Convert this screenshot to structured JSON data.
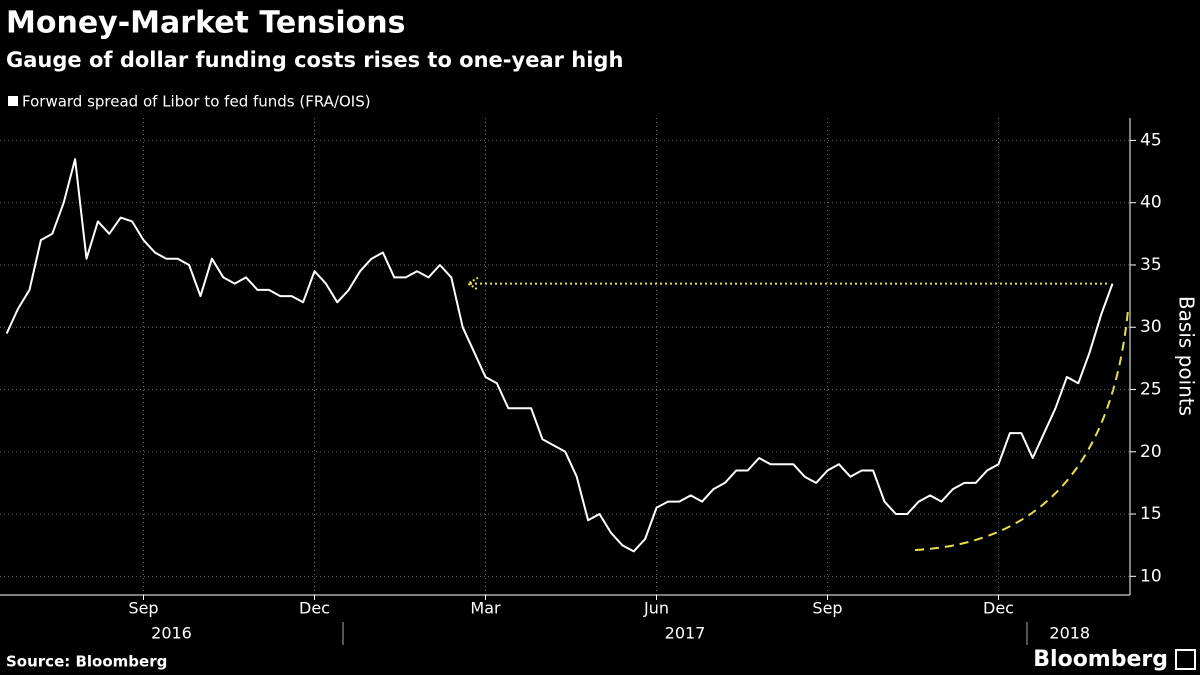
{
  "chart_data": {
    "type": "line",
    "title": "Money-Market Tensions",
    "subtitle": "Gauge of dollar funding costs rises to one-year high",
    "y_label": "Basis points",
    "source": "Source: Bloomberg",
    "brand": "Bloomberg",
    "x": [
      "2016-07",
      "2016-07",
      "2016-07",
      "2016-07",
      "2016-07",
      "2016-08",
      "2016-08",
      "2016-08",
      "2016-08",
      "2016-08",
      "2016-09",
      "2016-09",
      "2016-09",
      "2016-09",
      "2016-09",
      "2016-10",
      "2016-10",
      "2016-10",
      "2016-10",
      "2016-10",
      "2016-11",
      "2016-11",
      "2016-11",
      "2016-11",
      "2016-11",
      "2016-12",
      "2016-12",
      "2016-12",
      "2016-12",
      "2016-12",
      "2017-01",
      "2017-01",
      "2017-01",
      "2017-01",
      "2017-01",
      "2017-02",
      "2017-02",
      "2017-02",
      "2017-02",
      "2017-02",
      "2017-03",
      "2017-03",
      "2017-03",
      "2017-03",
      "2017-03",
      "2017-04",
      "2017-04",
      "2017-04",
      "2017-04",
      "2017-04",
      "2017-05",
      "2017-05",
      "2017-05",
      "2017-05",
      "2017-05",
      "2017-06",
      "2017-06",
      "2017-06",
      "2017-06",
      "2017-06",
      "2017-07",
      "2017-07",
      "2017-07",
      "2017-07",
      "2017-07",
      "2017-08",
      "2017-08",
      "2017-08",
      "2017-08",
      "2017-08",
      "2017-09",
      "2017-09",
      "2017-09",
      "2017-09",
      "2017-09",
      "2017-10",
      "2017-10",
      "2017-10",
      "2017-10",
      "2017-10",
      "2017-11",
      "2017-11",
      "2017-11",
      "2017-11",
      "2017-11",
      "2017-12",
      "2017-12",
      "2017-12",
      "2017-12",
      "2017-12",
      "2018-01",
      "2018-01",
      "2018-01",
      "2018-01",
      "2018-01",
      "2018-02",
      "2018-02",
      "2018-02"
    ],
    "series": [
      {
        "name": "Forward spread of Libor to fed funds (FRA/OIS)",
        "color": "#ffffff",
        "values": [
          29.5,
          31.5,
          33,
          37,
          37.5,
          40,
          43.5,
          35.5,
          38.5,
          37.5,
          38.8,
          38.5,
          37,
          36,
          35.5,
          35.5,
          35,
          32.5,
          35.5,
          34,
          33.5,
          34,
          33,
          33,
          32.5,
          32.5,
          32,
          34.5,
          33.5,
          32,
          33,
          34.5,
          35.5,
          36,
          34,
          34,
          34.5,
          34,
          35,
          34,
          30,
          28,
          26,
          25.5,
          23.5,
          23.5,
          23.5,
          21,
          20.5,
          20,
          18,
          14.5,
          15,
          13.5,
          12.5,
          12,
          13,
          15.5,
          16,
          16,
          16.5,
          16,
          17,
          17.5,
          18.5,
          18.5,
          19.5,
          19,
          19,
          19,
          18,
          17.5,
          18.5,
          19,
          18,
          18.5,
          18.5,
          16,
          15,
          15,
          16,
          16.5,
          16,
          17,
          17.5,
          17.5,
          18.5,
          19,
          21.5,
          21.5,
          19.5,
          21.5,
          23.5,
          26,
          25.5,
          28,
          31,
          33.5
        ]
      }
    ],
    "xlim": [
      "2016-07",
      "2018-02"
    ],
    "xticks": [
      {
        "value": "2016-09",
        "label": "Sep"
      },
      {
        "value": "2016-12",
        "label": "Dec"
      },
      {
        "value": "2017-03",
        "label": "Mar"
      },
      {
        "value": "2017-06",
        "label": "Jun"
      },
      {
        "value": "2017-09",
        "label": "Sep"
      },
      {
        "value": "2017-12",
        "label": "Dec"
      }
    ],
    "year_ticks": [
      "2016",
      "2017",
      "2018"
    ],
    "ylim": [
      8.5,
      46.8
    ],
    "yticks": [
      10,
      15,
      20,
      25,
      30,
      35,
      40,
      45
    ],
    "grid": true,
    "annotation_color": "#e8e04a"
  }
}
